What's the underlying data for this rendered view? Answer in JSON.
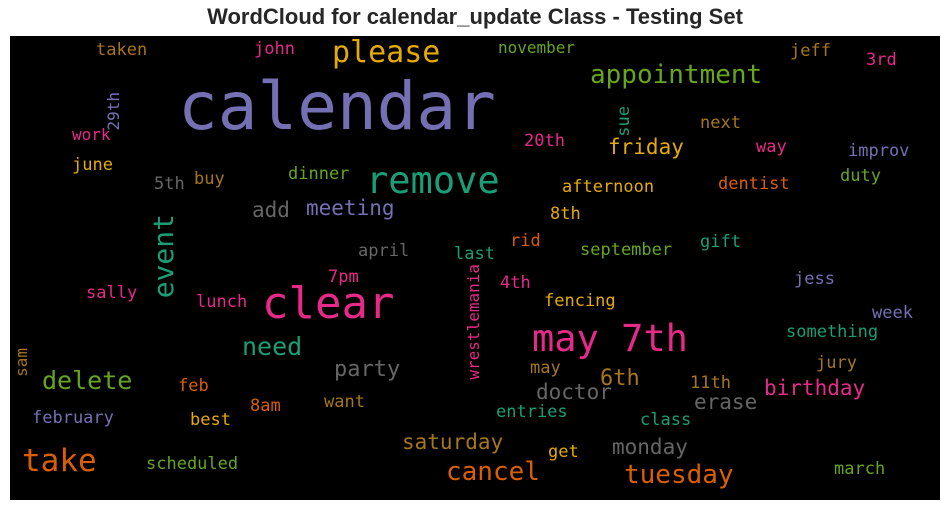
{
  "chart_data": {
    "type": "wordcloud",
    "title": "WordCloud for calendar_update Class - Testing Set",
    "background": "#000000",
    "words": [
      {
        "text": "calendar",
        "color": "#7570b3"
      },
      {
        "text": "clear",
        "color": "#e7298a"
      },
      {
        "text": "remove",
        "color": "#1b9e77"
      },
      {
        "text": "may 7th",
        "color": "#e7298a"
      },
      {
        "text": "please",
        "color": "#e6ab02"
      },
      {
        "text": "appointment",
        "color": "#66a61e"
      },
      {
        "text": "event",
        "color": "#1b9e77"
      },
      {
        "text": "take",
        "color": "#d95f02"
      },
      {
        "text": "delete",
        "color": "#66a61e"
      },
      {
        "text": "need",
        "color": "#1b9e77"
      },
      {
        "text": "tuesday",
        "color": "#d95f02"
      },
      {
        "text": "cancel",
        "color": "#d95f02"
      },
      {
        "text": "friday",
        "color": "#e6ab02"
      },
      {
        "text": "meeting",
        "color": "#7570b3"
      },
      {
        "text": "party",
        "color": "#666666"
      },
      {
        "text": "doctor",
        "color": "#666666"
      },
      {
        "text": "birthday",
        "color": "#e7298a"
      },
      {
        "text": "saturday",
        "color": "#a6761d"
      },
      {
        "text": "monday",
        "color": "#666666"
      },
      {
        "text": "erase",
        "color": "#666666"
      },
      {
        "text": "6th",
        "color": "#a6761d"
      },
      {
        "text": "add",
        "color": "#666666"
      },
      {
        "text": "wrestlemania",
        "color": "#e7298a"
      },
      {
        "text": "taken",
        "color": "#a6761d"
      },
      {
        "text": "john",
        "color": "#e7298a"
      },
      {
        "text": "november",
        "color": "#66a61e"
      },
      {
        "text": "jeff",
        "color": "#a6761d"
      },
      {
        "text": "3rd",
        "color": "#e7298a"
      },
      {
        "text": "29th",
        "color": "#7570b3"
      },
      {
        "text": "sue",
        "color": "#1b9e77"
      },
      {
        "text": "next",
        "color": "#a6761d"
      },
      {
        "text": "work",
        "color": "#e7298a"
      },
      {
        "text": "20th",
        "color": "#e7298a"
      },
      {
        "text": "way",
        "color": "#e7298a"
      },
      {
        "text": "improv",
        "color": "#7570b3"
      },
      {
        "text": "june",
        "color": "#e6ab02"
      },
      {
        "text": "dinner",
        "color": "#66a61e"
      },
      {
        "text": "5th",
        "color": "#666666"
      },
      {
        "text": "buy",
        "color": "#a6761d"
      },
      {
        "text": "afternoon",
        "color": "#e6ab02"
      },
      {
        "text": "dentist",
        "color": "#d95f02"
      },
      {
        "text": "duty",
        "color": "#66a61e"
      },
      {
        "text": "8th",
        "color": "#e6ab02"
      },
      {
        "text": "april",
        "color": "#666666"
      },
      {
        "text": "last",
        "color": "#1b9e77"
      },
      {
        "text": "rid",
        "color": "#d95f02"
      },
      {
        "text": "september",
        "color": "#66a61e"
      },
      {
        "text": "gift",
        "color": "#1b9e77"
      },
      {
        "text": "7pm",
        "color": "#e7298a"
      },
      {
        "text": "4th",
        "color": "#e7298a"
      },
      {
        "text": "jess",
        "color": "#7570b3"
      },
      {
        "text": "sally",
        "color": "#e7298a"
      },
      {
        "text": "lunch",
        "color": "#e7298a"
      },
      {
        "text": "fencing",
        "color": "#e6ab02"
      },
      {
        "text": "week",
        "color": "#7570b3"
      },
      {
        "text": "something",
        "color": "#1b9e77"
      },
      {
        "text": "sam",
        "color": "#a6761d"
      },
      {
        "text": "jury",
        "color": "#a6761d"
      },
      {
        "text": "may",
        "color": "#a6761d"
      },
      {
        "text": "feb",
        "color": "#d95f02"
      },
      {
        "text": "11th",
        "color": "#a6761d"
      },
      {
        "text": "february",
        "color": "#7570b3"
      },
      {
        "text": "best",
        "color": "#e6ab02"
      },
      {
        "text": "8am",
        "color": "#d95f02"
      },
      {
        "text": "want",
        "color": "#a6761d"
      },
      {
        "text": "entries",
        "color": "#1b9e77"
      },
      {
        "text": "class",
        "color": "#1b9e77"
      },
      {
        "text": "get",
        "color": "#e6ab02"
      },
      {
        "text": "scheduled",
        "color": "#66a61e"
      },
      {
        "text": "march",
        "color": "#66a61e"
      }
    ]
  }
}
